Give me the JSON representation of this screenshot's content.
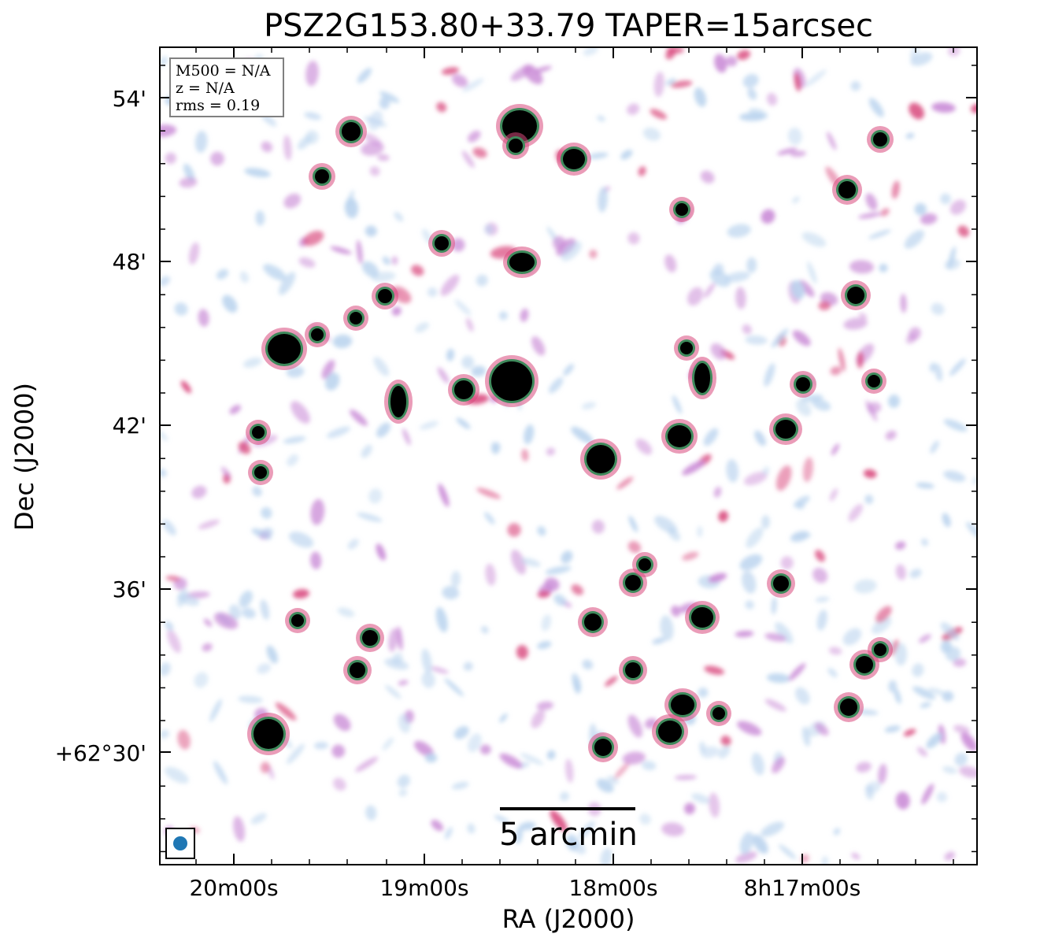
{
  "title": "PSZ2G153.80+33.79 TAPER=15arcsec",
  "info_box": {
    "m500": "M500 = N/A",
    "z": "z = N/A",
    "rms": "rms = 0.19"
  },
  "x_axis": {
    "label": "RA (J2000)",
    "ticks": [
      "20m00s",
      "19m00s",
      "18m00s",
      "8h17m00s"
    ]
  },
  "y_axis": {
    "label": "Dec (J2000)",
    "ticks": [
      "54'",
      "48'",
      "42'",
      "36'",
      "+62°30'"
    ]
  },
  "scale_bar": {
    "label": "5 arcmin"
  },
  "colors": {
    "faint_emission": "#b9d3ee",
    "mid_emission": "#c98ad6",
    "strong_emission": "#d94a7e",
    "source_halo": "#3f8a5c",
    "source_core": "#000000",
    "beam": "#1f77b4"
  }
}
